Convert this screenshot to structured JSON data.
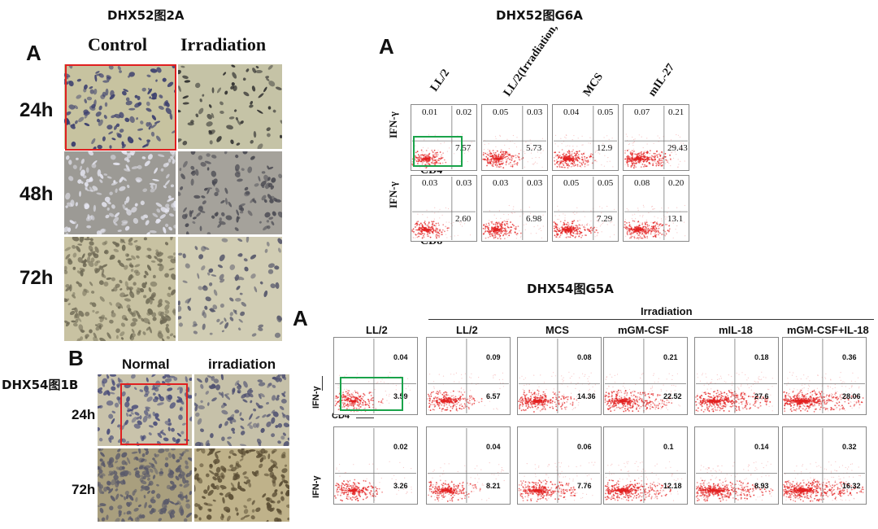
{
  "fig1": {
    "title": "DHX52图2A",
    "panel": "A",
    "cols": [
      "Control",
      "Irradiation"
    ],
    "rows": [
      "24h",
      "48h",
      "72h"
    ]
  },
  "fig2": {
    "title": "DHX52图G6A",
    "panel": "A",
    "cols": [
      "LL/2",
      "LL/2(Irradiation,",
      "MCS",
      "mIL-27"
    ],
    "rows": [
      {
        "ylabel": "IFN-γ",
        "xlabel": "CD4",
        "cells": [
          {
            "ul": "0.01",
            "ur": "0.02",
            "lr": "7.57"
          },
          {
            "ul": "0.05",
            "ur": "0.03",
            "lr": "5.73"
          },
          {
            "ul": "0.04",
            "ur": "0.05",
            "lr": "12.9"
          },
          {
            "ul": "0.07",
            "ur": "0.21",
            "lr": "29.43"
          }
        ]
      },
      {
        "ylabel": "IFN-γ",
        "xlabel": "CD8",
        "cells": [
          {
            "ul": "0.03",
            "ur": "0.03",
            "lr": "2.60"
          },
          {
            "ul": "0.03",
            "ur": "0.03",
            "lr": "6.98"
          },
          {
            "ul": "0.05",
            "ur": "0.05",
            "lr": "7.29"
          },
          {
            "ul": "0.08",
            "ur": "0.20",
            "lr": "13.1"
          }
        ]
      }
    ]
  },
  "fig3": {
    "title": "DHX54图1B",
    "panel": "B",
    "cols": [
      "Normal",
      "irradiation"
    ],
    "rows": [
      "24h",
      "72h"
    ]
  },
  "fig4": {
    "title": "DHX54图G5A",
    "panel": "A",
    "group_label": "Irradiation",
    "cols": [
      "LL/2",
      "LL/2",
      "MCS",
      "mGM-CSF",
      "mIL-18",
      "mGM-CSF+IL-18"
    ],
    "rows": [
      {
        "ylabel": "IFN-γ",
        "xlabel": "CD4",
        "cells": [
          {
            "ur": "0.04",
            "lr": "3.59"
          },
          {
            "ur": "0.09",
            "lr": "6.57"
          },
          {
            "ur": "0.08",
            "lr": "14.36"
          },
          {
            "ur": "0.21",
            "lr": "22.52"
          },
          {
            "ur": "0.18",
            "lr": "27.6"
          },
          {
            "ur": "0.36",
            "lr": "28.06"
          }
        ]
      },
      {
        "ylabel": "IFN-γ",
        "xlabel": "",
        "cells": [
          {
            "ur": "0.02",
            "lr": "3.26"
          },
          {
            "ur": "0.04",
            "lr": "8.21"
          },
          {
            "ur": "0.06",
            "lr": "7.76"
          },
          {
            "ur": "0.1",
            "lr": "12.18"
          },
          {
            "ur": "0.14",
            "lr": "8.93"
          },
          {
            "ur": "0.32",
            "lr": "16.32"
          }
        ]
      }
    ]
  },
  "colors": {
    "highlight_red": "#e02020",
    "highlight_green": "#1aa34a",
    "dot_red": "#e32222"
  }
}
